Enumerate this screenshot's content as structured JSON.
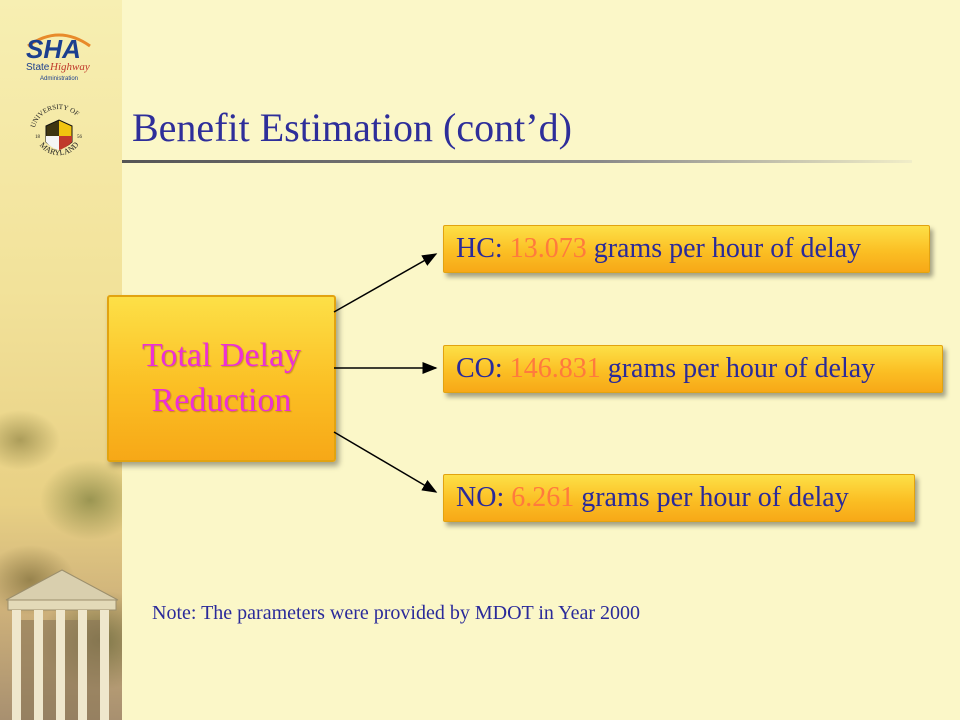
{
  "title": "Benefit Estimation (cont’d)",
  "logos": {
    "sha": {
      "text": "SHA",
      "line1": "State",
      "line2": "Highway",
      "line3": "Administration"
    },
    "umd": {
      "top": "UNIVERSITY OF",
      "bottom": "MARYLAND",
      "year_left": "18",
      "year_right": "56"
    }
  },
  "source": {
    "line1": "Total Delay",
    "line2": "Reduction"
  },
  "results": [
    {
      "gas": "HC:",
      "value": "13.073",
      "unit": "grams per hour of delay"
    },
    {
      "gas": "CO:",
      "value": "146.831",
      "unit": "grams per hour of delay"
    },
    {
      "gas": "NO:",
      "value": "6.261",
      "unit": "grams per hour of delay"
    }
  ],
  "note": "Note:  The parameters were provided by MDOT in Year 2000",
  "colors": {
    "title": "#2e2e9a",
    "source_text": "#ec30d6",
    "value": "#ff7a3d",
    "box": "#fbbf24"
  }
}
